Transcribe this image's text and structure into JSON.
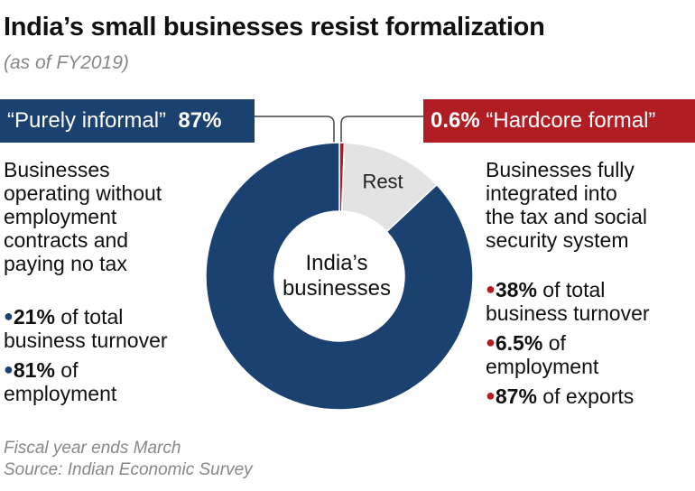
{
  "title": "India’s small businesses resist formalization",
  "subtitle": "(as of FY2019)",
  "left": {
    "label": "“Purely informal”",
    "pct": "87%",
    "description": [
      "Businesses",
      "operating without",
      "employment",
      "contracts and",
      "paying no tax"
    ],
    "bullets": [
      {
        "bold": "21%",
        "text": " of total",
        "cont": "business turnover"
      },
      {
        "bold": "81%",
        "text": " of",
        "cont": "employment"
      }
    ]
  },
  "right": {
    "pct": "0.6%",
    "label": "“Hardcore formal”",
    "description": [
      "Businesses fully",
      "integrated into",
      "the tax and social",
      "security system"
    ],
    "bullets": [
      {
        "bold": "38%",
        "text": " of total",
        "cont": "business turnover"
      },
      {
        "bold": "6.5%",
        "text": " of",
        "cont": "employment"
      },
      {
        "bold": "87%",
        "text": " of exports",
        "cont": ""
      }
    ]
  },
  "footnote": "Fiscal year ends March",
  "source": "Source: Indian Economic Survey",
  "chart_data": {
    "type": "pie",
    "donut": true,
    "center_label": [
      "India’s",
      "businesses"
    ],
    "slices": [
      {
        "name": "Hardcore formal",
        "value": 0.6,
        "color": "#b01e23",
        "label": ""
      },
      {
        "name": "Rest",
        "value": 12.4,
        "color": "#e3e3e3",
        "label": "Rest"
      },
      {
        "name": "Purely informal",
        "value": 87,
        "color": "#1b4171",
        "label": ""
      }
    ]
  }
}
